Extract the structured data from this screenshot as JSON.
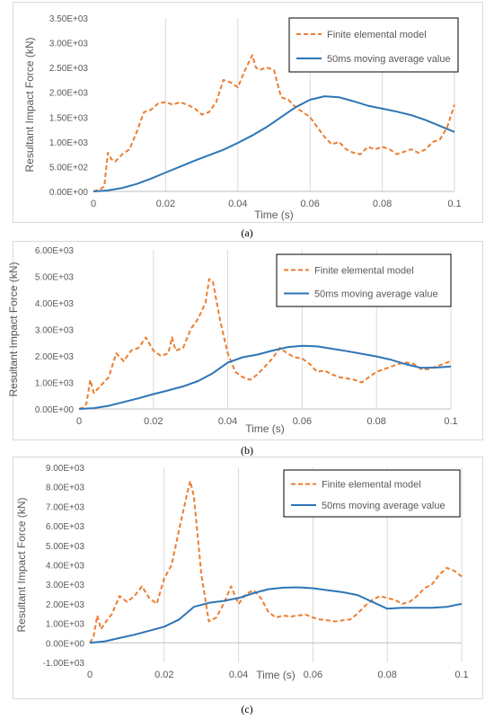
{
  "colors": {
    "fem": "#ED7D31",
    "avg": "#2E75B6",
    "grid": "#D9D9D9",
    "axis": "#BFBFBF",
    "text": "#595959"
  },
  "captions": [
    "(a)",
    "(b)",
    "(c)"
  ],
  "chart_data": [
    {
      "type": "line",
      "xlabel": "Time (s)",
      "ylabel": "Resultant Impact Force (kN)",
      "xlim": [
        0,
        0.1
      ],
      "ylim": [
        0,
        3500
      ],
      "x_ticks": [
        "0",
        "0.02",
        "0.04",
        "0.06",
        "0.08",
        "0.1"
      ],
      "y_ticks": [
        "0.00E+00",
        "5.00E+02",
        "1.00E+03",
        "1.50E+03",
        "2.00E+03",
        "2.50E+03",
        "3.00E+03",
        "3.50E+03"
      ],
      "grid": "vertical",
      "legend": "top-right",
      "series": [
        {
          "name": "Finite elemental model",
          "style": "dashed",
          "x": [
            0,
            0.002,
            0.003,
            0.004,
            0.005,
            0.006,
            0.008,
            0.01,
            0.012,
            0.014,
            0.016,
            0.018,
            0.02,
            0.022,
            0.024,
            0.026,
            0.028,
            0.03,
            0.032,
            0.034,
            0.036,
            0.038,
            0.04,
            0.042,
            0.044,
            0.045,
            0.046,
            0.048,
            0.05,
            0.052,
            0.054,
            0.056,
            0.058,
            0.06,
            0.062,
            0.064,
            0.066,
            0.068,
            0.07,
            0.072,
            0.074,
            0.076,
            0.078,
            0.08,
            0.082,
            0.084,
            0.086,
            0.088,
            0.09,
            0.092,
            0.094,
            0.096,
            0.098,
            0.1
          ],
          "y": [
            0,
            50,
            100,
            780,
            650,
            600,
            750,
            850,
            1200,
            1600,
            1650,
            1780,
            1800,
            1750,
            1800,
            1750,
            1680,
            1550,
            1600,
            1800,
            2250,
            2200,
            2100,
            2450,
            2750,
            2500,
            2450,
            2500,
            2450,
            1900,
            1850,
            1700,
            1600,
            1500,
            1300,
            1100,
            950,
            1000,
            850,
            780,
            750,
            900,
            850,
            900,
            850,
            750,
            800,
            850,
            780,
            850,
            1000,
            1050,
            1300,
            1750
          ]
        },
        {
          "name": "50ms moving average value",
          "style": "solid",
          "x": [
            0,
            0.004,
            0.008,
            0.012,
            0.016,
            0.02,
            0.024,
            0.028,
            0.032,
            0.036,
            0.04,
            0.044,
            0.048,
            0.052,
            0.056,
            0.06,
            0.064,
            0.068,
            0.072,
            0.076,
            0.08,
            0.084,
            0.088,
            0.092,
            0.096,
            0.1
          ],
          "y": [
            0,
            20,
            70,
            150,
            260,
            380,
            500,
            620,
            730,
            840,
            980,
            1130,
            1300,
            1500,
            1700,
            1850,
            1920,
            1900,
            1820,
            1730,
            1670,
            1610,
            1540,
            1440,
            1320,
            1200
          ]
        }
      ]
    },
    {
      "type": "line",
      "xlabel": "Time (s)",
      "ylabel": "Resultant Impact Force (kN)",
      "xlim": [
        0,
        0.1
      ],
      "ylim": [
        0,
        6000
      ],
      "x_ticks": [
        "0",
        "0.02",
        "0.04",
        "0.06",
        "0.08",
        "0.1"
      ],
      "y_ticks": [
        "0.00E+00",
        "1.00E+03",
        "2.00E+03",
        "3.00E+03",
        "4.00E+03",
        "5.00E+03",
        "6.00E+03"
      ],
      "grid": "vertical",
      "legend": "top-right",
      "series": [
        {
          "name": "Finite elemental model",
          "style": "dashed",
          "x": [
            0,
            0.001,
            0.002,
            0.003,
            0.004,
            0.006,
            0.008,
            0.01,
            0.012,
            0.014,
            0.016,
            0.018,
            0.02,
            0.022,
            0.024,
            0.025,
            0.026,
            0.028,
            0.03,
            0.032,
            0.034,
            0.035,
            0.036,
            0.038,
            0.04,
            0.042,
            0.044,
            0.046,
            0.048,
            0.05,
            0.052,
            0.054,
            0.056,
            0.058,
            0.06,
            0.062,
            0.064,
            0.066,
            0.068,
            0.07,
            0.072,
            0.074,
            0.076,
            0.078,
            0.08,
            0.082,
            0.084,
            0.086,
            0.088,
            0.09,
            0.092,
            0.094,
            0.096,
            0.098,
            0.1
          ],
          "y": [
            0,
            50,
            200,
            1100,
            600,
            900,
            1200,
            2100,
            1800,
            2200,
            2300,
            2700,
            2200,
            2000,
            2100,
            2700,
            2200,
            2300,
            3000,
            3400,
            4000,
            4900,
            4800,
            3300,
            2100,
            1400,
            1200,
            1100,
            1300,
            1600,
            1900,
            2300,
            2100,
            1950,
            1900,
            1700,
            1400,
            1450,
            1300,
            1200,
            1150,
            1100,
            1000,
            1200,
            1400,
            1500,
            1600,
            1700,
            1750,
            1700,
            1500,
            1500,
            1600,
            1700,
            1800
          ]
        },
        {
          "name": "50ms moving average value",
          "style": "solid",
          "x": [
            0,
            0.004,
            0.008,
            0.012,
            0.016,
            0.02,
            0.024,
            0.028,
            0.032,
            0.036,
            0.04,
            0.044,
            0.048,
            0.052,
            0.056,
            0.06,
            0.064,
            0.068,
            0.072,
            0.076,
            0.08,
            0.084,
            0.088,
            0.092,
            0.096,
            0.1
          ],
          "y": [
            0,
            30,
            120,
            260,
            400,
            560,
            700,
            850,
            1050,
            1350,
            1750,
            1950,
            2050,
            2200,
            2330,
            2380,
            2360,
            2270,
            2180,
            2080,
            1980,
            1850,
            1680,
            1550,
            1560,
            1600
          ]
        }
      ]
    },
    {
      "type": "line",
      "xlabel": "Time (s)",
      "ylabel": "Resultant Impact Force (kN)",
      "xlim": [
        0,
        0.1
      ],
      "ylim": [
        -1000,
        9000
      ],
      "x_ticks": [
        "0",
        "0.02",
        "0.04",
        "0.06",
        "0.08",
        "0.1"
      ],
      "y_ticks": [
        "-1.00E+03",
        "0.00E+00",
        "1.00E+03",
        "2.00E+03",
        "3.00E+03",
        "4.00E+03",
        "5.00E+03",
        "6.00E+03",
        "7.00E+03",
        "8.00E+03",
        "9.00E+03"
      ],
      "grid": "vertical",
      "legend": "top-right",
      "series": [
        {
          "name": "Finite elemental model",
          "style": "dashed",
          "x": [
            0,
            0.001,
            0.002,
            0.003,
            0.004,
            0.006,
            0.008,
            0.01,
            0.012,
            0.014,
            0.016,
            0.018,
            0.02,
            0.022,
            0.024,
            0.026,
            0.027,
            0.028,
            0.03,
            0.032,
            0.034,
            0.036,
            0.038,
            0.04,
            0.042,
            0.044,
            0.046,
            0.048,
            0.05,
            0.052,
            0.054,
            0.056,
            0.058,
            0.06,
            0.062,
            0.064,
            0.066,
            0.068,
            0.07,
            0.072,
            0.074,
            0.076,
            0.078,
            0.08,
            0.082,
            0.084,
            0.086,
            0.088,
            0.09,
            0.092,
            0.094,
            0.096,
            0.098,
            0.1
          ],
          "y": [
            0,
            300,
            1400,
            700,
            1000,
            1500,
            2400,
            2100,
            2400,
            2900,
            2300,
            2000,
            3300,
            4000,
            5800,
            7500,
            8300,
            7500,
            3500,
            1100,
            1300,
            2000,
            2900,
            2000,
            2500,
            2700,
            2300,
            1600,
            1300,
            1400,
            1350,
            1400,
            1450,
            1300,
            1200,
            1150,
            1100,
            1150,
            1200,
            1500,
            1900,
            2200,
            2400,
            2300,
            2200,
            2000,
            2100,
            2400,
            2800,
            3000,
            3500,
            3850,
            3700,
            3400
          ]
        },
        {
          "name": "50ms moving average value",
          "style": "solid",
          "x": [
            0,
            0.004,
            0.008,
            0.012,
            0.016,
            0.02,
            0.024,
            0.028,
            0.032,
            0.036,
            0.04,
            0.044,
            0.048,
            0.052,
            0.056,
            0.06,
            0.064,
            0.068,
            0.072,
            0.076,
            0.08,
            0.084,
            0.088,
            0.092,
            0.096,
            0.1
          ],
          "y": [
            0,
            80,
            250,
            420,
            620,
            830,
            1200,
            1850,
            2050,
            2150,
            2300,
            2550,
            2750,
            2830,
            2850,
            2800,
            2700,
            2600,
            2450,
            2100,
            1750,
            1800,
            1800,
            1800,
            1850,
            2000
          ]
        }
      ]
    }
  ]
}
